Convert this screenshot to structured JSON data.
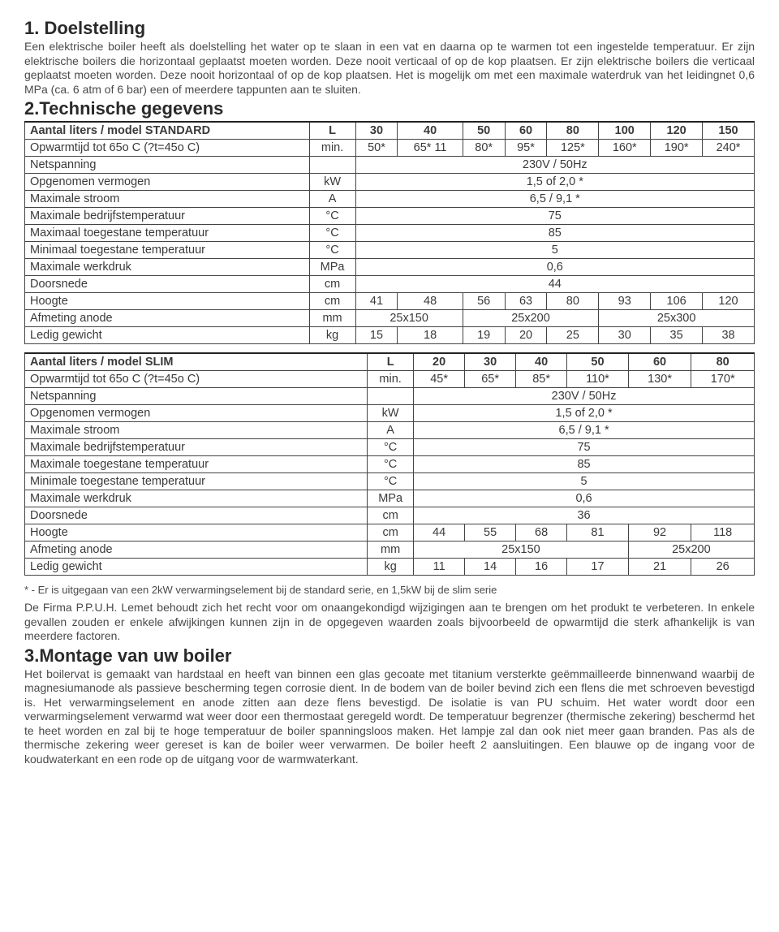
{
  "sections": {
    "s1_title": "1. Doelstelling",
    "s1_body": "Een elektrische boiler heeft als doelstelling het water op te slaan in een vat en daarna op te warmen tot een ingestelde temperatuur. Er zijn elektrische boilers die horizontaal geplaatst moeten worden. Deze nooit verticaal of op de kop plaatsen. Er zijn elektrische boilers die verticaal geplaatst moeten worden. Deze nooit horizontaal of op de kop plaatsen. Het is mogelijk om met een maximale waterdruk van het leidingnet 0,6 MPa (ca. 6 atm of 6 bar) een of meerdere tappunten aan te sluiten.",
    "s2_title": "2.Technische gegevens",
    "s3_title": "3.Montage van uw boiler",
    "s3_body": "Het boilervat is gemaakt van hardstaal en heeft van binnen een glas gecoate met titanium versterkte geëmmailleerde binnenwand waarbij de magnesiumanode als passieve bescherming tegen corrosie dient. In de bodem van de boiler bevind zich een flens die met schroeven bevestigd is. Het verwarmingselement en anode zitten aan deze flens bevestigd. De isolatie is van PU schuim. Het water wordt door een verwarmingselement verwarmd wat weer door een thermostaat geregeld wordt. De temperatuur begrenzer (thermische zekering) beschermd het te heet worden en zal bij te hoge temperatuur de boiler spanningsloos maken. Het lampje zal dan ook niet meer gaan branden. Pas als de thermische zekering weer gereset is kan de boiler weer verwarmen. De boiler heeft 2 aansluitingen. Een blauwe op de ingang voor de koudwaterkant en een rode op de uitgang voor de warmwaterkant."
  },
  "standard": {
    "header_label": "Aantal liters / model STANDARD",
    "header_unit": "L",
    "cols": [
      "30",
      "40",
      "50",
      "60",
      "80",
      "100",
      "120",
      "150"
    ],
    "rows": [
      {
        "label": "Opwarmtijd tot 65o C (?t=45o C)",
        "unit": "min.",
        "values": [
          "50*",
          "65* 11",
          "80*",
          "95*",
          "125*",
          "160*",
          "190*",
          "240*"
        ]
      },
      {
        "label": "Netspanning",
        "unit": "",
        "span": "230V / 50Hz"
      },
      {
        "label": "Opgenomen vermogen",
        "unit": "kW",
        "span": "1,5  of   2,0 *"
      },
      {
        "label": "Maximale stroom",
        "unit": "A",
        "span": "6,5 / 9,1 *"
      },
      {
        "label": "Maximale bedrijfstemperatuur",
        "unit": "°C",
        "span": "75"
      },
      {
        "label": "Maximaal toegestane temperatuur",
        "unit": "°C",
        "span": "85"
      },
      {
        "label": "Minimaal toegestane temperatuur",
        "unit": "°C",
        "span": "5"
      },
      {
        "label": "Maximale werkdruk",
        "unit": "MPa",
        "span": "0,6"
      },
      {
        "label": "Doorsnede",
        "unit": "cm",
        "span": "44"
      },
      {
        "label": "Hoogte",
        "unit": "cm",
        "values": [
          "41",
          "48",
          "56",
          "63",
          "80",
          "93",
          "106",
          "120"
        ]
      },
      {
        "label": "Afmeting anode",
        "unit": "mm",
        "groups": [
          {
            "v": "25x150",
            "span": 2
          },
          {
            "v": "25x200",
            "span": 3
          },
          {
            "v": "25x300",
            "span": 3
          }
        ]
      },
      {
        "label": "Ledig gewicht",
        "unit": "kg",
        "values": [
          "15",
          "18",
          "19",
          "20",
          "25",
          "30",
          "35",
          "38"
        ]
      }
    ]
  },
  "slim": {
    "header_label": "Aantal liters / model SLIM",
    "header_unit": "L",
    "cols": [
      "20",
      "30",
      "40",
      "50",
      "60",
      "80"
    ],
    "rows": [
      {
        "label": "Opwarmtijd tot 65o C (?t=45o C)",
        "unit": "min.",
        "values": [
          "45*",
          "65*",
          "85*",
          "110*",
          "130*",
          "170*"
        ]
      },
      {
        "label": "Netspanning",
        "unit": "",
        "span": "230V / 50Hz"
      },
      {
        "label": "Opgenomen vermogen",
        "unit": "kW",
        "span": "1,5  of   2,0 *"
      },
      {
        "label": "Maximale stroom",
        "unit": "A",
        "span": "6,5 / 9,1 *"
      },
      {
        "label": "Maximale bedrijfstemperatuur",
        "unit": "°C",
        "span": "75"
      },
      {
        "label": "Maximale toegestane temperatuur",
        "unit": "°C",
        "span": "85"
      },
      {
        "label": "Minimale toegestane temperatuur",
        "unit": "°C",
        "span": "5"
      },
      {
        "label": "Maximale werkdruk",
        "unit": "MPa",
        "span": "0,6"
      },
      {
        "label": "Doorsnede",
        "unit": "cm",
        "span": "36"
      },
      {
        "label": "Hoogte",
        "unit": "cm",
        "values": [
          "44",
          "55",
          "68",
          "81",
          "92",
          "118"
        ]
      },
      {
        "label": "Afmeting anode",
        "unit": "mm",
        "groups": [
          {
            "v": "25x150",
            "span": 4
          },
          {
            "v": "25x200",
            "span": 2
          }
        ]
      },
      {
        "label": "Ledig gewicht",
        "unit": "kg",
        "values": [
          "11",
          "14",
          "16",
          "17",
          "21",
          "26"
        ]
      }
    ]
  },
  "footnote": "* - Er is uitgegaan van een 2kW verwarmingselement bij de standard serie, en 1,5kW bij de slim serie",
  "disclaimer": "De Firma P.P.U.H. Lemet behoudt zich het recht voor om onaangekondigd wijzigingen aan te brengen om het produkt te verbeteren. In enkele gevallen zouden er enkele afwijkingen kunnen zijn in de opgegeven waarden zoals bijvoorbeeld de opwarmtijd die sterk afhankelijk is van meerdere factoren.",
  "style": {
    "table_border_color": "#444444",
    "text_color": "#3a3a3a",
    "heading_color": "#2a2a2a",
    "body_font_size": 14,
    "table_font_size": 14.5,
    "heading_font_size": 22
  }
}
